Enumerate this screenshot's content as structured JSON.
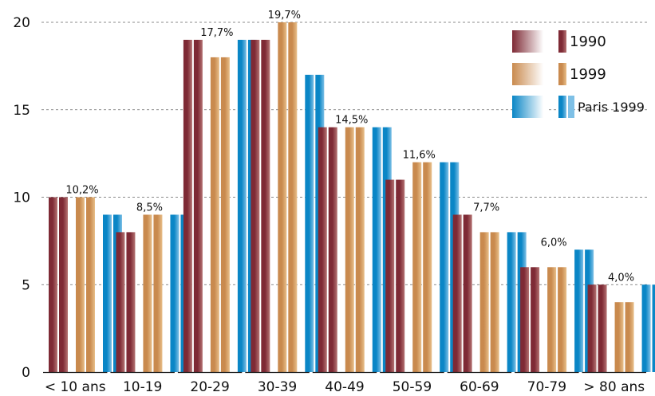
{
  "chart_data": {
    "type": "bar",
    "categories": [
      "< 10 ans",
      "10-19",
      "20-29",
      "30-39",
      "40-49",
      "50-59",
      "60-69",
      "70-79",
      "> 80 ans"
    ],
    "series": [
      {
        "name": "1990",
        "values": [
          10,
          8,
          19,
          19,
          14,
          11,
          9,
          6,
          5
        ]
      },
      {
        "name": "1999",
        "values": [
          10,
          9,
          18,
          20,
          14,
          12,
          8,
          6,
          4
        ]
      },
      {
        "name": "Paris 1999",
        "values": [
          9,
          9,
          19,
          17,
          14,
          12,
          8,
          7,
          5
        ]
      }
    ],
    "data_labels": [
      "10,2%",
      "8,5%",
      "17,7%",
      "19,7%",
      "14,5%",
      "11,6%",
      "7,7%",
      "6,0%",
      "4,0%"
    ],
    "y_ticks": [
      "0",
      "5",
      "10",
      "15",
      "20"
    ],
    "ylim": [
      0,
      20
    ],
    "grid": true,
    "legend_placement": "top-right",
    "colors": {
      "1990": [
        "#7e2a35",
        "#b57373"
      ],
      "1999": [
        "#c98a4e",
        "#e8bf8a"
      ],
      "Paris 1999": [
        "#0a86c6",
        "#7ec0e6"
      ]
    }
  }
}
